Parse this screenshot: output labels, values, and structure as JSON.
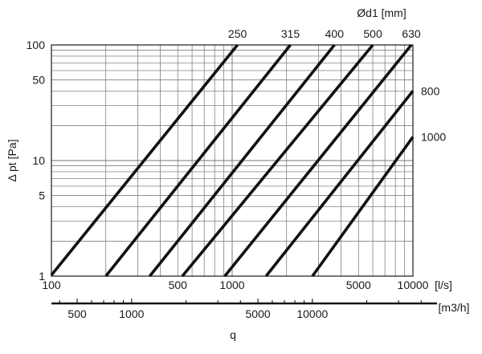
{
  "chart_data": {
    "type": "line",
    "xscale": "log",
    "yscale": "log",
    "x_unit_label": "[l/s]",
    "x2_unit_label": "[m3/h]",
    "x_title": "q",
    "y_title": "Δ pt [Pa]",
    "legend_title": "Ød1 [mm]",
    "xlim": [
      100,
      10000
    ],
    "ylim": [
      1,
      100
    ],
    "x_ticks": [
      {
        "value": 100,
        "label": "100"
      },
      {
        "value": 500,
        "label": "500"
      },
      {
        "value": 1000,
        "label": "1000"
      },
      {
        "value": 5000,
        "label": "5000"
      },
      {
        "value": 10000,
        "label": "10000"
      }
    ],
    "x2_ticks": [
      {
        "value": 500,
        "label": "500"
      },
      {
        "value": 1000,
        "label": "1000"
      },
      {
        "value": 5000,
        "label": "5000"
      },
      {
        "value": 10000,
        "label": "10000"
      }
    ],
    "y_ticks": [
      {
        "value": 1,
        "label": "1"
      },
      {
        "value": 5,
        "label": "5"
      },
      {
        "value": 10,
        "label": "10"
      },
      {
        "value": 50,
        "label": "50"
      },
      {
        "value": 100,
        "label": "100"
      }
    ],
    "series": [
      {
        "name": "250",
        "points": [
          [
            100,
            1.02
          ],
          [
            1070,
            100
          ]
        ]
      },
      {
        "name": "315",
        "points": [
          [
            200,
            1.0
          ],
          [
            2100,
            100
          ]
        ]
      },
      {
        "name": "400",
        "points": [
          [
            350,
            1.0
          ],
          [
            3680,
            100
          ]
        ]
      },
      {
        "name": "500",
        "points": [
          [
            530,
            1.0
          ],
          [
            6000,
            100
          ]
        ]
      },
      {
        "name": "630",
        "points": [
          [
            910,
            1.0
          ],
          [
            9800,
            100
          ]
        ]
      },
      {
        "name": "800",
        "points": [
          [
            1540,
            1.0
          ],
          [
            10000,
            40
          ]
        ]
      },
      {
        "name": "1000",
        "points": [
          [
            2780,
            1.0
          ],
          [
            10000,
            16
          ]
        ]
      }
    ]
  }
}
